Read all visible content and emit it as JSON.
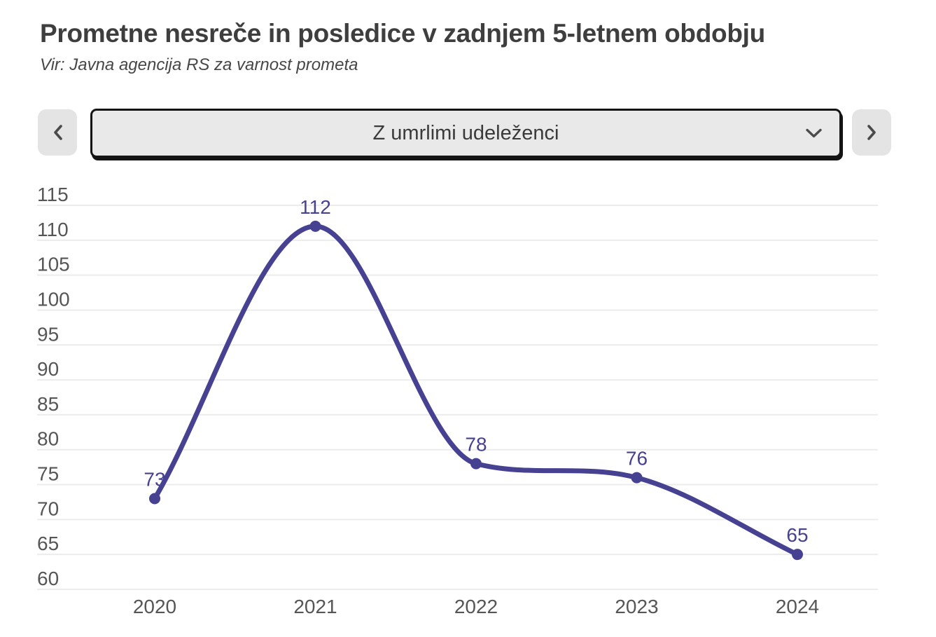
{
  "header": {
    "title": "Prometne nesreče in posledice v zadnjem 5-letnem obdobju",
    "subtitle": "Vir: Javna agencija RS za varnost prometa"
  },
  "controls": {
    "previous_button": {
      "icon": "chevron-left-icon"
    },
    "next_button": {
      "icon": "chevron-right-icon"
    },
    "selector": {
      "value": "Z umrlimi udeleženci",
      "icon": "chevron-down-icon"
    }
  },
  "chart_data": {
    "type": "line",
    "categories": [
      "2020",
      "2021",
      "2022",
      "2023",
      "2024"
    ],
    "series": [
      {
        "name": "Z umrlimi udeleženci",
        "values": [
          73,
          112,
          78,
          76,
          65
        ]
      }
    ],
    "point_labels": [
      "73",
      "112",
      "78",
      "76",
      "65"
    ],
    "yticks": [
      115,
      110,
      105,
      100,
      95,
      90,
      85,
      80,
      75,
      70,
      65,
      60
    ],
    "ylim": [
      60,
      115
    ],
    "title": "",
    "xlabel": "",
    "ylabel": "",
    "grid": "horizontal-only",
    "legend": "none",
    "smoothing": "monotone-cubic",
    "line_color": "#474192",
    "point_color": "#474192",
    "value_label_color": "#474192",
    "grid_color": "#ececec",
    "axis_tick_color": "#565656"
  }
}
